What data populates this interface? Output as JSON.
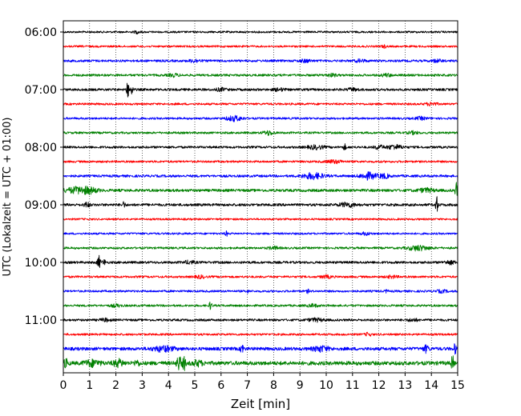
{
  "chart_data": {
    "type": "line",
    "xlabel": "Zeit  [min]",
    "ylabel": "UTC (Lokalzeit = UTC + 01:00)",
    "xlim": [
      0,
      15
    ],
    "xticks": [
      "0",
      "1",
      "2",
      "3",
      "4",
      "5",
      "6",
      "7",
      "8",
      "9",
      "10",
      "11",
      "12",
      "13",
      "14",
      "15"
    ],
    "ytick_labels": [
      "06:00",
      "07:00",
      "08:00",
      "09:00",
      "10:00",
      "11:00"
    ],
    "grid": "vertical dotted lines at each minute",
    "row_interval_minutes": 15,
    "row_colors": [
      "#000000",
      "#ff0000",
      "#0000ff",
      "#008000"
    ],
    "traces": [
      {
        "start": "06:00",
        "base": 1.2,
        "bursts": [
          [
            2.8,
            1.5,
            0.1
          ]
        ]
      },
      {
        "start": "06:15",
        "base": 1.2,
        "bursts": [
          [
            12.2,
            1.5,
            0.1
          ]
        ]
      },
      {
        "start": "06:30",
        "base": 1.4,
        "bursts": [
          [
            5.0,
            1.8,
            0.2
          ],
          [
            9.2,
            1.6,
            0.2
          ],
          [
            11.3,
            1.5,
            0.2
          ],
          [
            14.2,
            1.5,
            0.2
          ]
        ]
      },
      {
        "start": "06:45",
        "base": 1.4,
        "bursts": [
          [
            4.2,
            1.6,
            0.2
          ],
          [
            10.2,
            1.5,
            0.2
          ],
          [
            12.3,
            1.5,
            0.2
          ]
        ]
      },
      {
        "start": "07:00",
        "base": 1.5,
        "bursts": [
          [
            2.45,
            9,
            0.05
          ],
          [
            2.6,
            6,
            0.05
          ],
          [
            6.0,
            1.6,
            0.2
          ],
          [
            8.2,
            1.6,
            0.2
          ],
          [
            11.0,
            1.6,
            0.2
          ]
        ]
      },
      {
        "start": "07:15",
        "base": 1.3,
        "bursts": [
          [
            14.0,
            1.8,
            0.2
          ]
        ]
      },
      {
        "start": "07:30",
        "base": 1.3,
        "bursts": [
          [
            6.5,
            3,
            0.3
          ],
          [
            13.6,
            1.6,
            0.2
          ]
        ]
      },
      {
        "start": "07:45",
        "base": 1.3,
        "bursts": [
          [
            7.8,
            2.5,
            0.2
          ],
          [
            13.3,
            1.6,
            0.2
          ]
        ]
      },
      {
        "start": "08:00",
        "base": 1.4,
        "bursts": [
          [
            9.6,
            2.2,
            0.3
          ],
          [
            10.7,
            3.5,
            0.05
          ],
          [
            12.0,
            2.5,
            0.15
          ],
          [
            12.6,
            2.5,
            0.3
          ]
        ]
      },
      {
        "start": "08:15",
        "base": 1.3,
        "bursts": [
          [
            10.3,
            1.8,
            0.3
          ]
        ]
      },
      {
        "start": "08:30",
        "base": 1.5,
        "bursts": [
          [
            9.5,
            3.5,
            0.4
          ],
          [
            11.6,
            4,
            0.3
          ],
          [
            12.2,
            2.5,
            0.2
          ]
        ]
      },
      {
        "start": "08:45",
        "base": 1.7,
        "bursts": [
          [
            0.5,
            3.5,
            0.4
          ],
          [
            1.0,
            3,
            0.3
          ],
          [
            13.8,
            2.2,
            0.3
          ],
          [
            14.95,
            10,
            0.05
          ]
        ]
      },
      {
        "start": "09:00",
        "base": 1.6,
        "bursts": [
          [
            0.9,
            3,
            0.1
          ],
          [
            2.3,
            3.5,
            0.05
          ],
          [
            10.8,
            2.5,
            0.3
          ],
          [
            14.2,
            10,
            0.05
          ]
        ]
      },
      {
        "start": "09:15",
        "base": 1.2,
        "bursts": []
      },
      {
        "start": "09:30",
        "base": 1.2,
        "bursts": [
          [
            6.2,
            3,
            0.05
          ],
          [
            11.5,
            1.5,
            0.2
          ]
        ]
      },
      {
        "start": "09:45",
        "base": 1.3,
        "bursts": [
          [
            8.0,
            1.6,
            0.2
          ],
          [
            13.5,
            3,
            0.4
          ]
        ]
      },
      {
        "start": "10:00",
        "base": 1.5,
        "bursts": [
          [
            1.35,
            8,
            0.06
          ],
          [
            1.55,
            4,
            0.05
          ],
          [
            4.8,
            1.8,
            0.2
          ],
          [
            14.7,
            2,
            0.2
          ]
        ]
      },
      {
        "start": "10:15",
        "base": 1.3,
        "bursts": [
          [
            5.2,
            1.6,
            0.2
          ],
          [
            10.0,
            1.6,
            0.2
          ],
          [
            12.5,
            1.5,
            0.2
          ]
        ]
      },
      {
        "start": "10:30",
        "base": 1.3,
        "bursts": [
          [
            7.0,
            2,
            0.05
          ],
          [
            9.3,
            2,
            0.05
          ],
          [
            12.3,
            1.8,
            0.05
          ],
          [
            14.4,
            1.5,
            0.2
          ]
        ]
      },
      {
        "start": "10:45",
        "base": 1.3,
        "bursts": [
          [
            2.0,
            1.5,
            0.2
          ],
          [
            5.6,
            5,
            0.05
          ],
          [
            9.5,
            1.6,
            0.2
          ]
        ]
      },
      {
        "start": "11:00",
        "base": 1.4,
        "bursts": [
          [
            1.6,
            1.6,
            0.2
          ],
          [
            9.6,
            1.8,
            0.3
          ],
          [
            13.3,
            1.5,
            0.2
          ]
        ]
      },
      {
        "start": "11:15",
        "base": 1.3,
        "bursts": [
          [
            11.6,
            2.2,
            0.1
          ]
        ]
      },
      {
        "start": "11:30",
        "base": 2.0,
        "bursts": [
          [
            3.8,
            3,
            0.4
          ],
          [
            6.8,
            7,
            0.05
          ],
          [
            9.8,
            3,
            0.3
          ],
          [
            13.8,
            4,
            0.1
          ],
          [
            14.9,
            6,
            0.05
          ]
        ]
      },
      {
        "start": "11:45",
        "base": 2.4,
        "bursts": [
          [
            0.1,
            4,
            0.1
          ],
          [
            1.1,
            3.5,
            0.3
          ],
          [
            2.1,
            4,
            0.2
          ],
          [
            2.8,
            3,
            0.1
          ],
          [
            4.4,
            8,
            0.1
          ],
          [
            4.6,
            9,
            0.05
          ],
          [
            5.1,
            3,
            0.2
          ],
          [
            14.8,
            9,
            0.05
          ]
        ]
      }
    ]
  }
}
